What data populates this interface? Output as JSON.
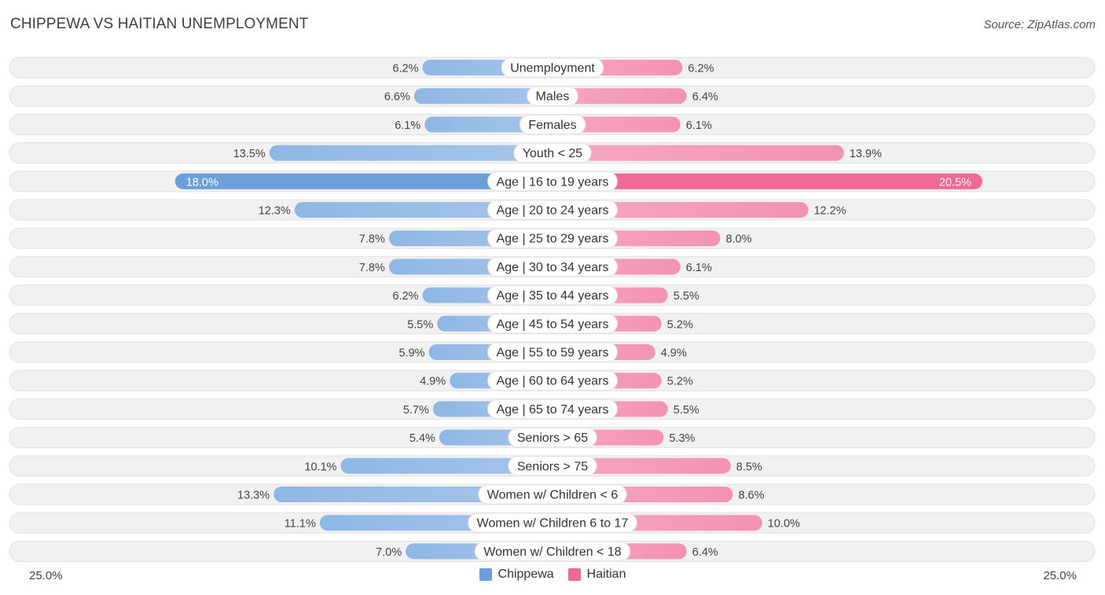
{
  "header": {
    "title": "CHIPPEWA VS HAITIAN UNEMPLOYMENT",
    "source": "Source: ZipAtlas.com"
  },
  "colors": {
    "chippewa_light": "#a7c6ea",
    "chippewa_dark": "#6a9fdb",
    "haitian_light": "#f6a8c2",
    "haitian_dark": "#f06894",
    "row_bg": "#f1f1f1",
    "row_border": "#e2e2e2"
  },
  "chart_data": {
    "type": "bar",
    "orientation": "horizontal-diverging",
    "title": "CHIPPEWA VS HAITIAN UNEMPLOYMENT",
    "xlim": [
      -25,
      25
    ],
    "axis_left_label": "25.0%",
    "axis_right_label": "25.0%",
    "legend": [
      "Chippewa",
      "Haitian"
    ],
    "legend_position": "bottom-center",
    "categories": [
      "Unemployment",
      "Males",
      "Females",
      "Youth < 25",
      "Age | 16 to 19 years",
      "Age | 20 to 24 years",
      "Age | 25 to 29 years",
      "Age | 30 to 34 years",
      "Age | 35 to 44 years",
      "Age | 45 to 54 years",
      "Age | 55 to 59 years",
      "Age | 60 to 64 years",
      "Age | 65 to 74 years",
      "Seniors > 65",
      "Seniors > 75",
      "Women w/ Children < 6",
      "Women w/ Children 6 to 17",
      "Women w/ Children < 18"
    ],
    "series": [
      {
        "name": "Chippewa",
        "values": [
          6.2,
          6.6,
          6.1,
          13.5,
          18.0,
          12.3,
          7.8,
          7.8,
          6.2,
          5.5,
          5.9,
          4.9,
          5.7,
          5.4,
          10.1,
          13.3,
          11.1,
          7.0
        ],
        "labels": [
          "6.2%",
          "6.6%",
          "6.1%",
          "13.5%",
          "18.0%",
          "12.3%",
          "7.8%",
          "7.8%",
          "6.2%",
          "5.5%",
          "5.9%",
          "4.9%",
          "5.7%",
          "5.4%",
          "10.1%",
          "13.3%",
          "11.1%",
          "7.0%"
        ]
      },
      {
        "name": "Haitian",
        "values": [
          6.2,
          6.4,
          6.1,
          13.9,
          20.5,
          12.2,
          8.0,
          6.1,
          5.5,
          5.2,
          4.9,
          5.2,
          5.5,
          5.3,
          8.5,
          8.6,
          10.0,
          6.4
        ],
        "labels": [
          "6.2%",
          "6.4%",
          "6.1%",
          "13.9%",
          "20.5%",
          "12.2%",
          "8.0%",
          "6.1%",
          "5.5%",
          "5.2%",
          "4.9%",
          "5.2%",
          "5.5%",
          "5.3%",
          "8.5%",
          "8.6%",
          "10.0%",
          "6.4%"
        ]
      }
    ]
  }
}
